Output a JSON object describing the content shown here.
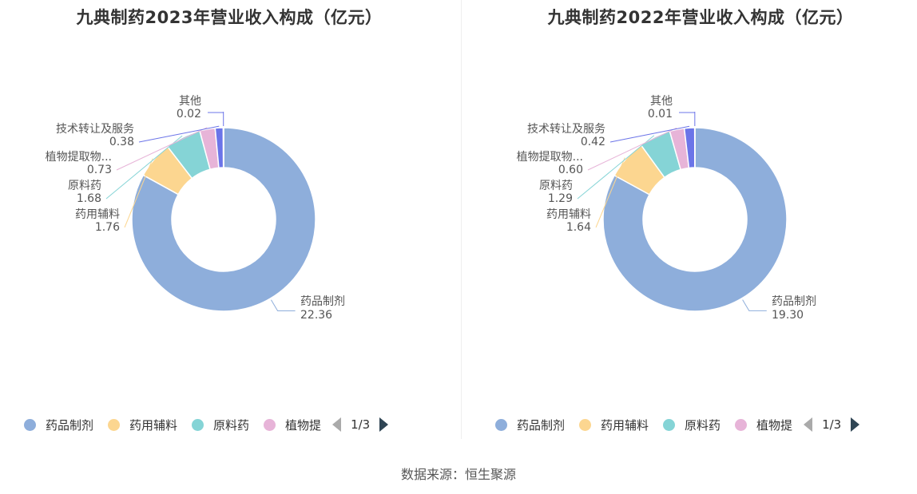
{
  "source": "数据来源：恒生聚源",
  "colors": [
    "#8eaedb",
    "#fcd690",
    "#85d4d6",
    "#e7b4d8",
    "#6b74e8"
  ],
  "chart_data": [
    {
      "type": "pie",
      "title": "九典制药2023年营业收入构成（亿元）",
      "unit": "亿元",
      "slices": [
        {
          "name": "药品制剂",
          "label": "药品制剂",
          "value": 22.36,
          "display": "22.36"
        },
        {
          "name": "药用辅料",
          "label": "药用辅料",
          "value": 1.76,
          "display": "1.76"
        },
        {
          "name": "原料药",
          "label": "原料药",
          "value": 1.68,
          "display": "1.68"
        },
        {
          "name": "植物提取物",
          "label": "植物提取物...",
          "value": 0.73,
          "display": "0.73"
        },
        {
          "name": "技术转让及服务",
          "label": "技术转让及服务",
          "value": 0.38,
          "display": "0.38"
        },
        {
          "name": "其他",
          "label": "其他",
          "value": 0.02,
          "display": "0.02"
        }
      ],
      "legend": {
        "items": [
          "药品制剂",
          "药用辅料",
          "原料药",
          "植物提"
        ],
        "page": "1/3",
        "placement": "bottom"
      }
    },
    {
      "type": "pie",
      "title": "九典制药2022年营业收入构成（亿元）",
      "unit": "亿元",
      "slices": [
        {
          "name": "药品制剂",
          "label": "药品制剂",
          "value": 19.3,
          "display": "19.30"
        },
        {
          "name": "药用辅料",
          "label": "药用辅料",
          "value": 1.64,
          "display": "1.64"
        },
        {
          "name": "原料药",
          "label": "原料药",
          "value": 1.29,
          "display": "1.29"
        },
        {
          "name": "植物提取物",
          "label": "植物提取物...",
          "value": 0.6,
          "display": "0.60"
        },
        {
          "name": "技术转让及服务",
          "label": "技术转让及服务",
          "value": 0.42,
          "display": "0.42"
        },
        {
          "name": "其他",
          "label": "其他",
          "value": 0.01,
          "display": "0.01"
        }
      ],
      "legend": {
        "items": [
          "药品制剂",
          "药用辅料",
          "原料药",
          "植物提"
        ],
        "page": "1/3",
        "placement": "bottom"
      }
    }
  ]
}
